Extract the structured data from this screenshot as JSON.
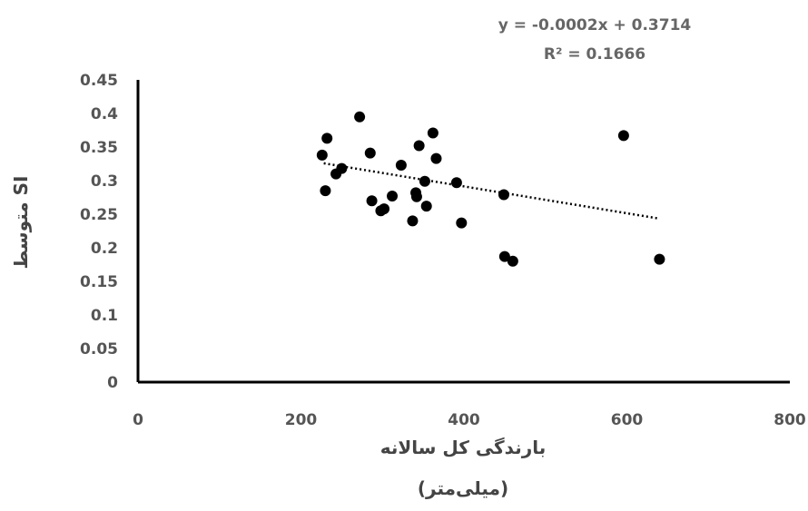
{
  "chart_data": {
    "type": "scatter",
    "xlabel_line1": "بارندگی کل سالانه",
    "xlabel_line2": "(میلی‌متر)",
    "ylabel": "متوسط SI",
    "xlim": [
      0,
      800
    ],
    "ylim": [
      0,
      0.45
    ],
    "x_ticks": [
      "0",
      "200",
      "400",
      "600",
      "800"
    ],
    "y_ticks": [
      "0",
      "0.05",
      "0.1",
      "0.15",
      "0.2",
      "0.25",
      "0.3",
      "0.35",
      "0.4",
      "0.45"
    ],
    "trendline": {
      "equation": "y = -0.0002x + 0.3714",
      "r_squared": "R² = 0.1666",
      "slope": -0.0002,
      "intercept": 0.3714,
      "x_range": [
        228,
        640
      ],
      "style": "dotted"
    },
    "points": [
      {
        "x": 226,
        "y": 0.338
      },
      {
        "x": 230,
        "y": 0.285
      },
      {
        "x": 232,
        "y": 0.363
      },
      {
        "x": 243,
        "y": 0.31
      },
      {
        "x": 250,
        "y": 0.318
      },
      {
        "x": 272,
        "y": 0.395
      },
      {
        "x": 285,
        "y": 0.341
      },
      {
        "x": 287,
        "y": 0.27
      },
      {
        "x": 298,
        "y": 0.255
      },
      {
        "x": 302,
        "y": 0.258
      },
      {
        "x": 312,
        "y": 0.277
      },
      {
        "x": 323,
        "y": 0.323
      },
      {
        "x": 337,
        "y": 0.24
      },
      {
        "x": 341,
        "y": 0.282
      },
      {
        "x": 342,
        "y": 0.276
      },
      {
        "x": 345,
        "y": 0.352
      },
      {
        "x": 352,
        "y": 0.299
      },
      {
        "x": 354,
        "y": 0.262
      },
      {
        "x": 362,
        "y": 0.371
      },
      {
        "x": 366,
        "y": 0.333
      },
      {
        "x": 391,
        "y": 0.297
      },
      {
        "x": 397,
        "y": 0.237
      },
      {
        "x": 449,
        "y": 0.279
      },
      {
        "x": 450,
        "y": 0.187
      },
      {
        "x": 460,
        "y": 0.18
      },
      {
        "x": 596,
        "y": 0.367
      },
      {
        "x": 640,
        "y": 0.183
      }
    ]
  }
}
